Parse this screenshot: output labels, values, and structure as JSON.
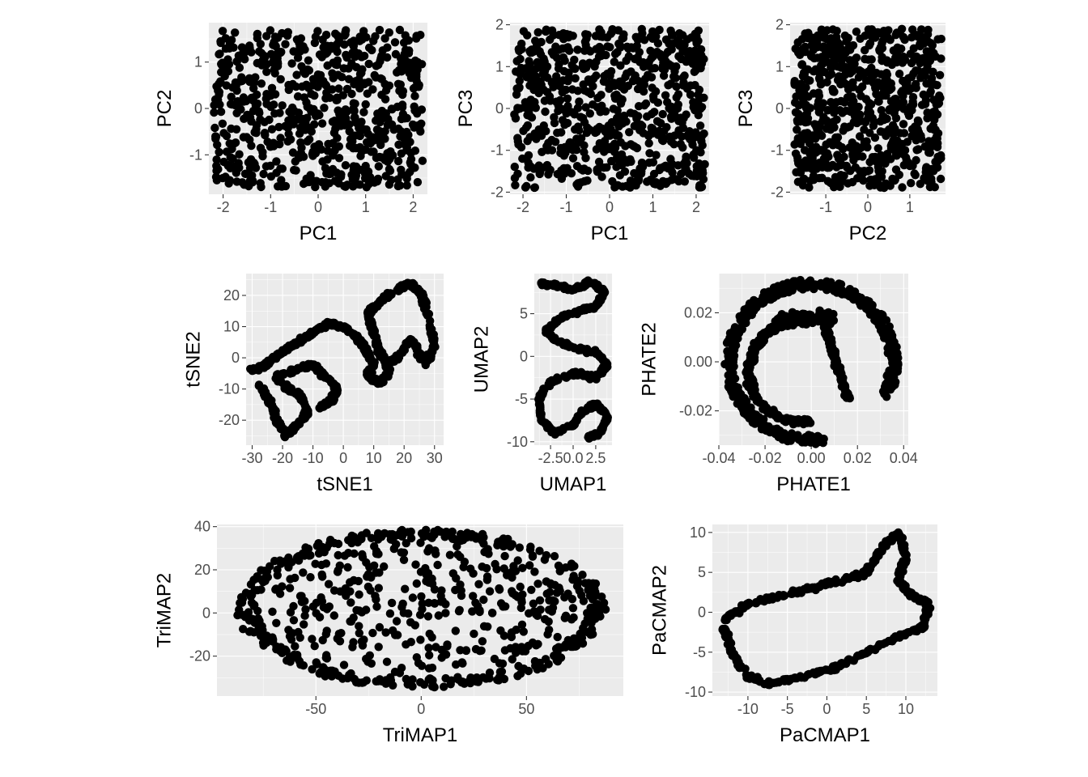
{
  "chart_data": [
    {
      "id": "pc1_pc2",
      "type": "scatter",
      "xlabel": "PC1",
      "ylabel": "PC2",
      "xlim": [
        -2.3,
        2.3
      ],
      "ylim": [
        -1.85,
        1.85
      ],
      "xticks": [
        {
          "v": -2,
          "label": "-2"
        },
        {
          "v": -1,
          "label": "-1"
        },
        {
          "v": 0,
          "label": "0"
        },
        {
          "v": 1,
          "label": "1"
        },
        {
          "v": 2,
          "label": "2"
        }
      ],
      "yticks": [
        {
          "v": -1,
          "label": "-1"
        },
        {
          "v": 0,
          "label": "0"
        },
        {
          "v": 1,
          "label": "1"
        }
      ],
      "grid": true,
      "shape": "rect",
      "n_points": 1000,
      "x_extent": [
        -2.2,
        2.2
      ],
      "y_extent": [
        -1.7,
        1.7
      ]
    },
    {
      "id": "pc1_pc3",
      "type": "scatter",
      "xlabel": "PC1",
      "ylabel": "PC3",
      "xlim": [
        -2.3,
        2.3
      ],
      "ylim": [
        -2.05,
        2.05
      ],
      "xticks": [
        {
          "v": -2,
          "label": "-2"
        },
        {
          "v": -1,
          "label": "-1"
        },
        {
          "v": 0,
          "label": "0"
        },
        {
          "v": 1,
          "label": "1"
        },
        {
          "v": 2,
          "label": "2"
        }
      ],
      "yticks": [
        {
          "v": -2,
          "label": "-2"
        },
        {
          "v": -1,
          "label": "-1"
        },
        {
          "v": 0,
          "label": "0"
        },
        {
          "v": 1,
          "label": "1"
        },
        {
          "v": 2,
          "label": "2"
        }
      ],
      "grid": true,
      "shape": "rect",
      "n_points": 1000,
      "x_extent": [
        -2.2,
        2.2
      ],
      "y_extent": [
        -1.9,
        1.9
      ]
    },
    {
      "id": "pc2_pc3",
      "type": "scatter",
      "xlabel": "PC2",
      "ylabel": "PC3",
      "xlim": [
        -1.85,
        1.85
      ],
      "ylim": [
        -2.05,
        2.05
      ],
      "xticks": [
        {
          "v": -1,
          "label": "-1"
        },
        {
          "v": 0,
          "label": "0"
        },
        {
          "v": 1,
          "label": "1"
        }
      ],
      "yticks": [
        {
          "v": -2,
          "label": "-2"
        },
        {
          "v": -1,
          "label": "-1"
        },
        {
          "v": 0,
          "label": "0"
        },
        {
          "v": 1,
          "label": "1"
        },
        {
          "v": 2,
          "label": "2"
        }
      ],
      "grid": true,
      "shape": "rect",
      "n_points": 1000,
      "x_extent": [
        -1.75,
        1.75
      ],
      "y_extent": [
        -1.9,
        1.9
      ]
    },
    {
      "id": "tsne",
      "type": "scatter",
      "xlabel": "tSNE1",
      "ylabel": "tSNE2",
      "xlim": [
        -32,
        33
      ],
      "ylim": [
        -28,
        27
      ],
      "xticks": [
        {
          "v": -30,
          "label": "-30"
        },
        {
          "v": -20,
          "label": "-20"
        },
        {
          "v": -10,
          "label": "-10"
        },
        {
          "v": 0,
          "label": "0"
        },
        {
          "v": 10,
          "label": "10"
        },
        {
          "v": 20,
          "label": "20"
        },
        {
          "v": 30,
          "label": "30"
        }
      ],
      "yticks": [
        {
          "v": -20,
          "label": "-20"
        },
        {
          "v": -10,
          "label": "-10"
        },
        {
          "v": 0,
          "label": "0"
        },
        {
          "v": 10,
          "label": "10"
        },
        {
          "v": 20,
          "label": "20"
        }
      ],
      "grid": true,
      "shape": "curve",
      "path": [
        [
          -30,
          -4
        ],
        [
          -25,
          -2
        ],
        [
          -20,
          2
        ],
        [
          -15,
          5
        ],
        [
          -10,
          8
        ],
        [
          -5,
          11
        ],
        [
          0,
          10
        ],
        [
          5,
          6
        ],
        [
          8,
          2
        ],
        [
          10,
          -2
        ],
        [
          8,
          -6
        ],
        [
          12,
          -8
        ],
        [
          15,
          -4
        ],
        [
          12,
          2
        ],
        [
          10,
          8
        ],
        [
          8,
          14
        ],
        [
          12,
          18
        ],
        [
          18,
          22
        ],
        [
          22,
          24
        ],
        [
          26,
          20
        ],
        [
          28,
          12
        ],
        [
          30,
          4
        ],
        [
          27,
          -2
        ],
        [
          22,
          6
        ],
        [
          18,
          0
        ],
        [
          14,
          -2
        ]
      ],
      "path2": [
        [
          -28,
          -8
        ],
        [
          -24,
          -14
        ],
        [
          -22,
          -20
        ],
        [
          -19,
          -25
        ],
        [
          -16,
          -22
        ],
        [
          -12,
          -18
        ],
        [
          -14,
          -12
        ],
        [
          -18,
          -10
        ],
        [
          -22,
          -6
        ],
        [
          -16,
          -4
        ],
        [
          -10,
          -2
        ],
        [
          -6,
          -6
        ],
        [
          -2,
          -10
        ],
        [
          -4,
          -14
        ],
        [
          -8,
          -16
        ]
      ]
    },
    {
      "id": "umap",
      "type": "scatter",
      "xlabel": "UMAP1",
      "ylabel": "UMAP2",
      "xlim": [
        -4.3,
        4.3
      ],
      "ylim": [
        -10.4,
        9.7
      ],
      "xticks": [
        {
          "v": -2.5,
          "label": "-2.5"
        },
        {
          "v": 0,
          "label": "0.0"
        },
        {
          "v": 2.5,
          "label": "2.5"
        }
      ],
      "yticks": [
        {
          "v": -10,
          "label": "-10"
        },
        {
          "v": -5,
          "label": "-5"
        },
        {
          "v": 0,
          "label": "0"
        },
        {
          "v": 5,
          "label": "5"
        }
      ],
      "grid": true,
      "shape": "curve",
      "path": [
        [
          -3.5,
          8.5
        ],
        [
          -2,
          8.3
        ],
        [
          0,
          7.8
        ],
        [
          2,
          8.8
        ],
        [
          3.5,
          7.5
        ],
        [
          2.5,
          5.8
        ],
        [
          1,
          5.5
        ],
        [
          -1.5,
          4.5
        ],
        [
          -3,
          3
        ],
        [
          -2,
          2
        ],
        [
          0,
          1
        ],
        [
          2.5,
          0.5
        ],
        [
          3.8,
          -1
        ],
        [
          2.5,
          -2.5
        ],
        [
          0,
          -2
        ],
        [
          -2.5,
          -3
        ],
        [
          -3.8,
          -5
        ],
        [
          -3.5,
          -7.5
        ],
        [
          -2,
          -9
        ],
        [
          0,
          -8
        ],
        [
          1,
          -6.5
        ],
        [
          2.5,
          -5.5
        ],
        [
          3.8,
          -7
        ],
        [
          3,
          -9
        ],
        [
          1.5,
          -9.5
        ]
      ]
    },
    {
      "id": "phate",
      "type": "scatter",
      "xlabel": "PHATE1",
      "ylabel": "PHATE2",
      "xlim": [
        -0.04,
        0.042
      ],
      "ylim": [
        -0.034,
        0.036
      ],
      "xticks": [
        {
          "v": -0.04,
          "label": "-0.04"
        },
        {
          "v": -0.02,
          "label": "-0.02"
        },
        {
          "v": 0,
          "label": "0.00"
        },
        {
          "v": 0.02,
          "label": "0.02"
        },
        {
          "v": 0.04,
          "label": "0.04"
        }
      ],
      "yticks": [
        {
          "v": -0.02,
          "label": "-0.02"
        },
        {
          "v": 0,
          "label": "0.00"
        },
        {
          "v": 0.02,
          "label": "0.02"
        }
      ],
      "grid": true,
      "shape": "ring",
      "center": [
        0.0,
        0.0
      ],
      "rx": 0.037,
      "ry": 0.033
    },
    {
      "id": "trimap",
      "type": "scatter",
      "xlabel": "TriMAP1",
      "ylabel": "TriMAP2",
      "xlim": [
        -97,
        96
      ],
      "ylim": [
        -38.5,
        41
      ],
      "xticks": [
        {
          "v": -50,
          "label": "-50"
        },
        {
          "v": 0,
          "label": "0"
        },
        {
          "v": 50,
          "label": "50"
        }
      ],
      "yticks": [
        {
          "v": -20,
          "label": "-20"
        },
        {
          "v": 0,
          "label": "0"
        },
        {
          "v": 20,
          "label": "20"
        },
        {
          "v": 40,
          "label": "40"
        }
      ],
      "grid": true,
      "shape": "blob",
      "center": [
        0,
        2
      ],
      "rx": 86,
      "ry": 36
    },
    {
      "id": "pacmap",
      "type": "scatter",
      "xlabel": "PaCMAP1",
      "ylabel": "PaCMAP2",
      "xlim": [
        -14.5,
        14
      ],
      "ylim": [
        -10.5,
        11
      ],
      "xticks": [
        {
          "v": -10,
          "label": "-10"
        },
        {
          "v": -5,
          "label": "-5"
        },
        {
          "v": 0,
          "label": "0"
        },
        {
          "v": 5,
          "label": "5"
        },
        {
          "v": 10,
          "label": "10"
        }
      ],
      "yticks": [
        {
          "v": -10,
          "label": "-10"
        },
        {
          "v": -5,
          "label": "-5"
        },
        {
          "v": 0,
          "label": "0"
        },
        {
          "v": 5,
          "label": "5"
        },
        {
          "v": 10,
          "label": "10"
        }
      ],
      "grid": true,
      "shape": "curve",
      "path": [
        [
          -13,
          -1
        ],
        [
          -10,
          1
        ],
        [
          -6,
          2
        ],
        [
          -2,
          3
        ],
        [
          2,
          4
        ],
        [
          5,
          5
        ],
        [
          7,
          8
        ],
        [
          9,
          10
        ],
        [
          10,
          7
        ],
        [
          9,
          4
        ],
        [
          11,
          2
        ],
        [
          13,
          1
        ],
        [
          12,
          -2
        ],
        [
          9,
          -3
        ],
        [
          5,
          -5
        ],
        [
          1,
          -7
        ],
        [
          -3,
          -8
        ],
        [
          -7,
          -9
        ],
        [
          -10,
          -8
        ],
        [
          -12,
          -5
        ],
        [
          -13,
          -2
        ]
      ]
    }
  ]
}
